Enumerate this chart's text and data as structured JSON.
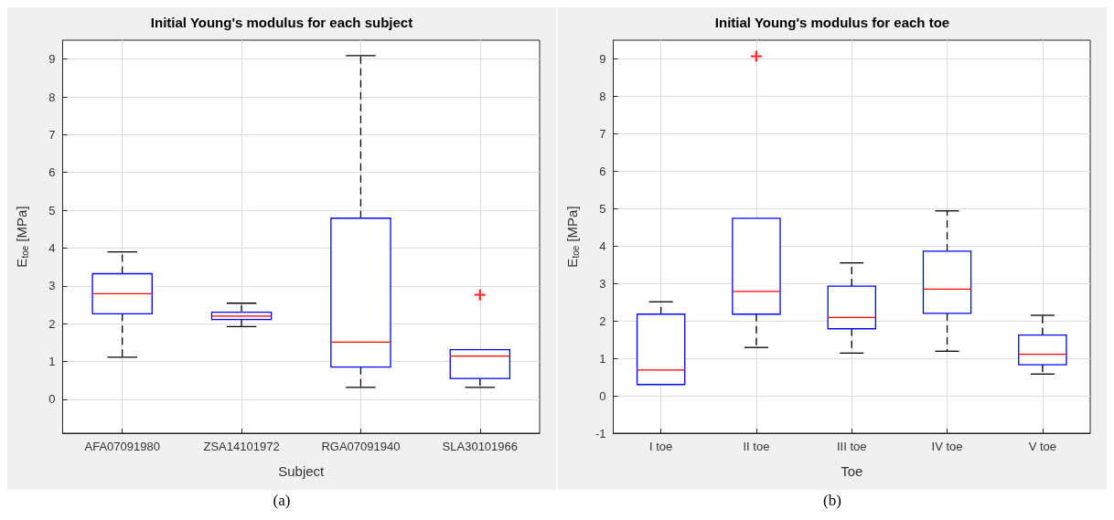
{
  "chart_data": [
    {
      "type": "box",
      "title": "Initial Young's modulus for each subject",
      "xlabel": "Subject",
      "ylabel": "E$_{toe}$ [MPa]",
      "categories": [
        "AFA07091980",
        "ZSA14101972",
        "RGA07091940",
        "SLA30101966"
      ],
      "ylim": [
        -0.9,
        9.5
      ],
      "yticks": [
        0,
        1,
        2,
        3,
        4,
        5,
        6,
        7,
        8,
        9
      ],
      "grid": true,
      "annotations": [
        "(a)"
      ],
      "boxes": [
        {
          "low": 1.11,
          "q1": 2.26,
          "median": 2.79,
          "q3": 3.32,
          "high": 3.9
        },
        {
          "low": 1.92,
          "q1": 2.11,
          "median": 2.2,
          "q3": 2.3,
          "high": 2.54
        },
        {
          "low": 0.31,
          "q1": 0.85,
          "median": 1.51,
          "q3": 4.79,
          "high": 9.09
        },
        {
          "low": 0.31,
          "q1": 0.55,
          "median": 1.14,
          "q3": 1.31,
          "high": 1.31,
          "outliers": [
            2.76
          ]
        }
      ]
    },
    {
      "type": "box",
      "title": "Initial Young's modulus for each toe",
      "xlabel": "Toe",
      "ylabel": "E$_{toe}$ [MPa]",
      "categories": [
        "I toe",
        "II toe",
        "III toe",
        "IV toe",
        "V toe"
      ],
      "ylim": [
        -1,
        9.5
      ],
      "yticks": [
        -1,
        0,
        1,
        2,
        3,
        4,
        5,
        6,
        7,
        8,
        9
      ],
      "grid": true,
      "annotations": [
        "(b)"
      ],
      "boxes": [
        {
          "low": 0.3,
          "q1": 0.3,
          "median": 0.69,
          "q3": 2.18,
          "high": 2.51
        },
        {
          "low": 1.29,
          "q1": 2.18,
          "median": 2.79,
          "q3": 4.74,
          "high": 4.74,
          "outliers": [
            9.07
          ]
        },
        {
          "low": 1.14,
          "q1": 1.79,
          "median": 2.09,
          "q3": 2.93,
          "high": 3.55
        },
        {
          "low": 1.19,
          "q1": 2.2,
          "median": 2.85,
          "q3": 3.86,
          "high": 4.94
        },
        {
          "low": 0.58,
          "q1": 0.83,
          "median": 1.11,
          "q3": 1.62,
          "high": 2.15
        }
      ]
    }
  ]
}
